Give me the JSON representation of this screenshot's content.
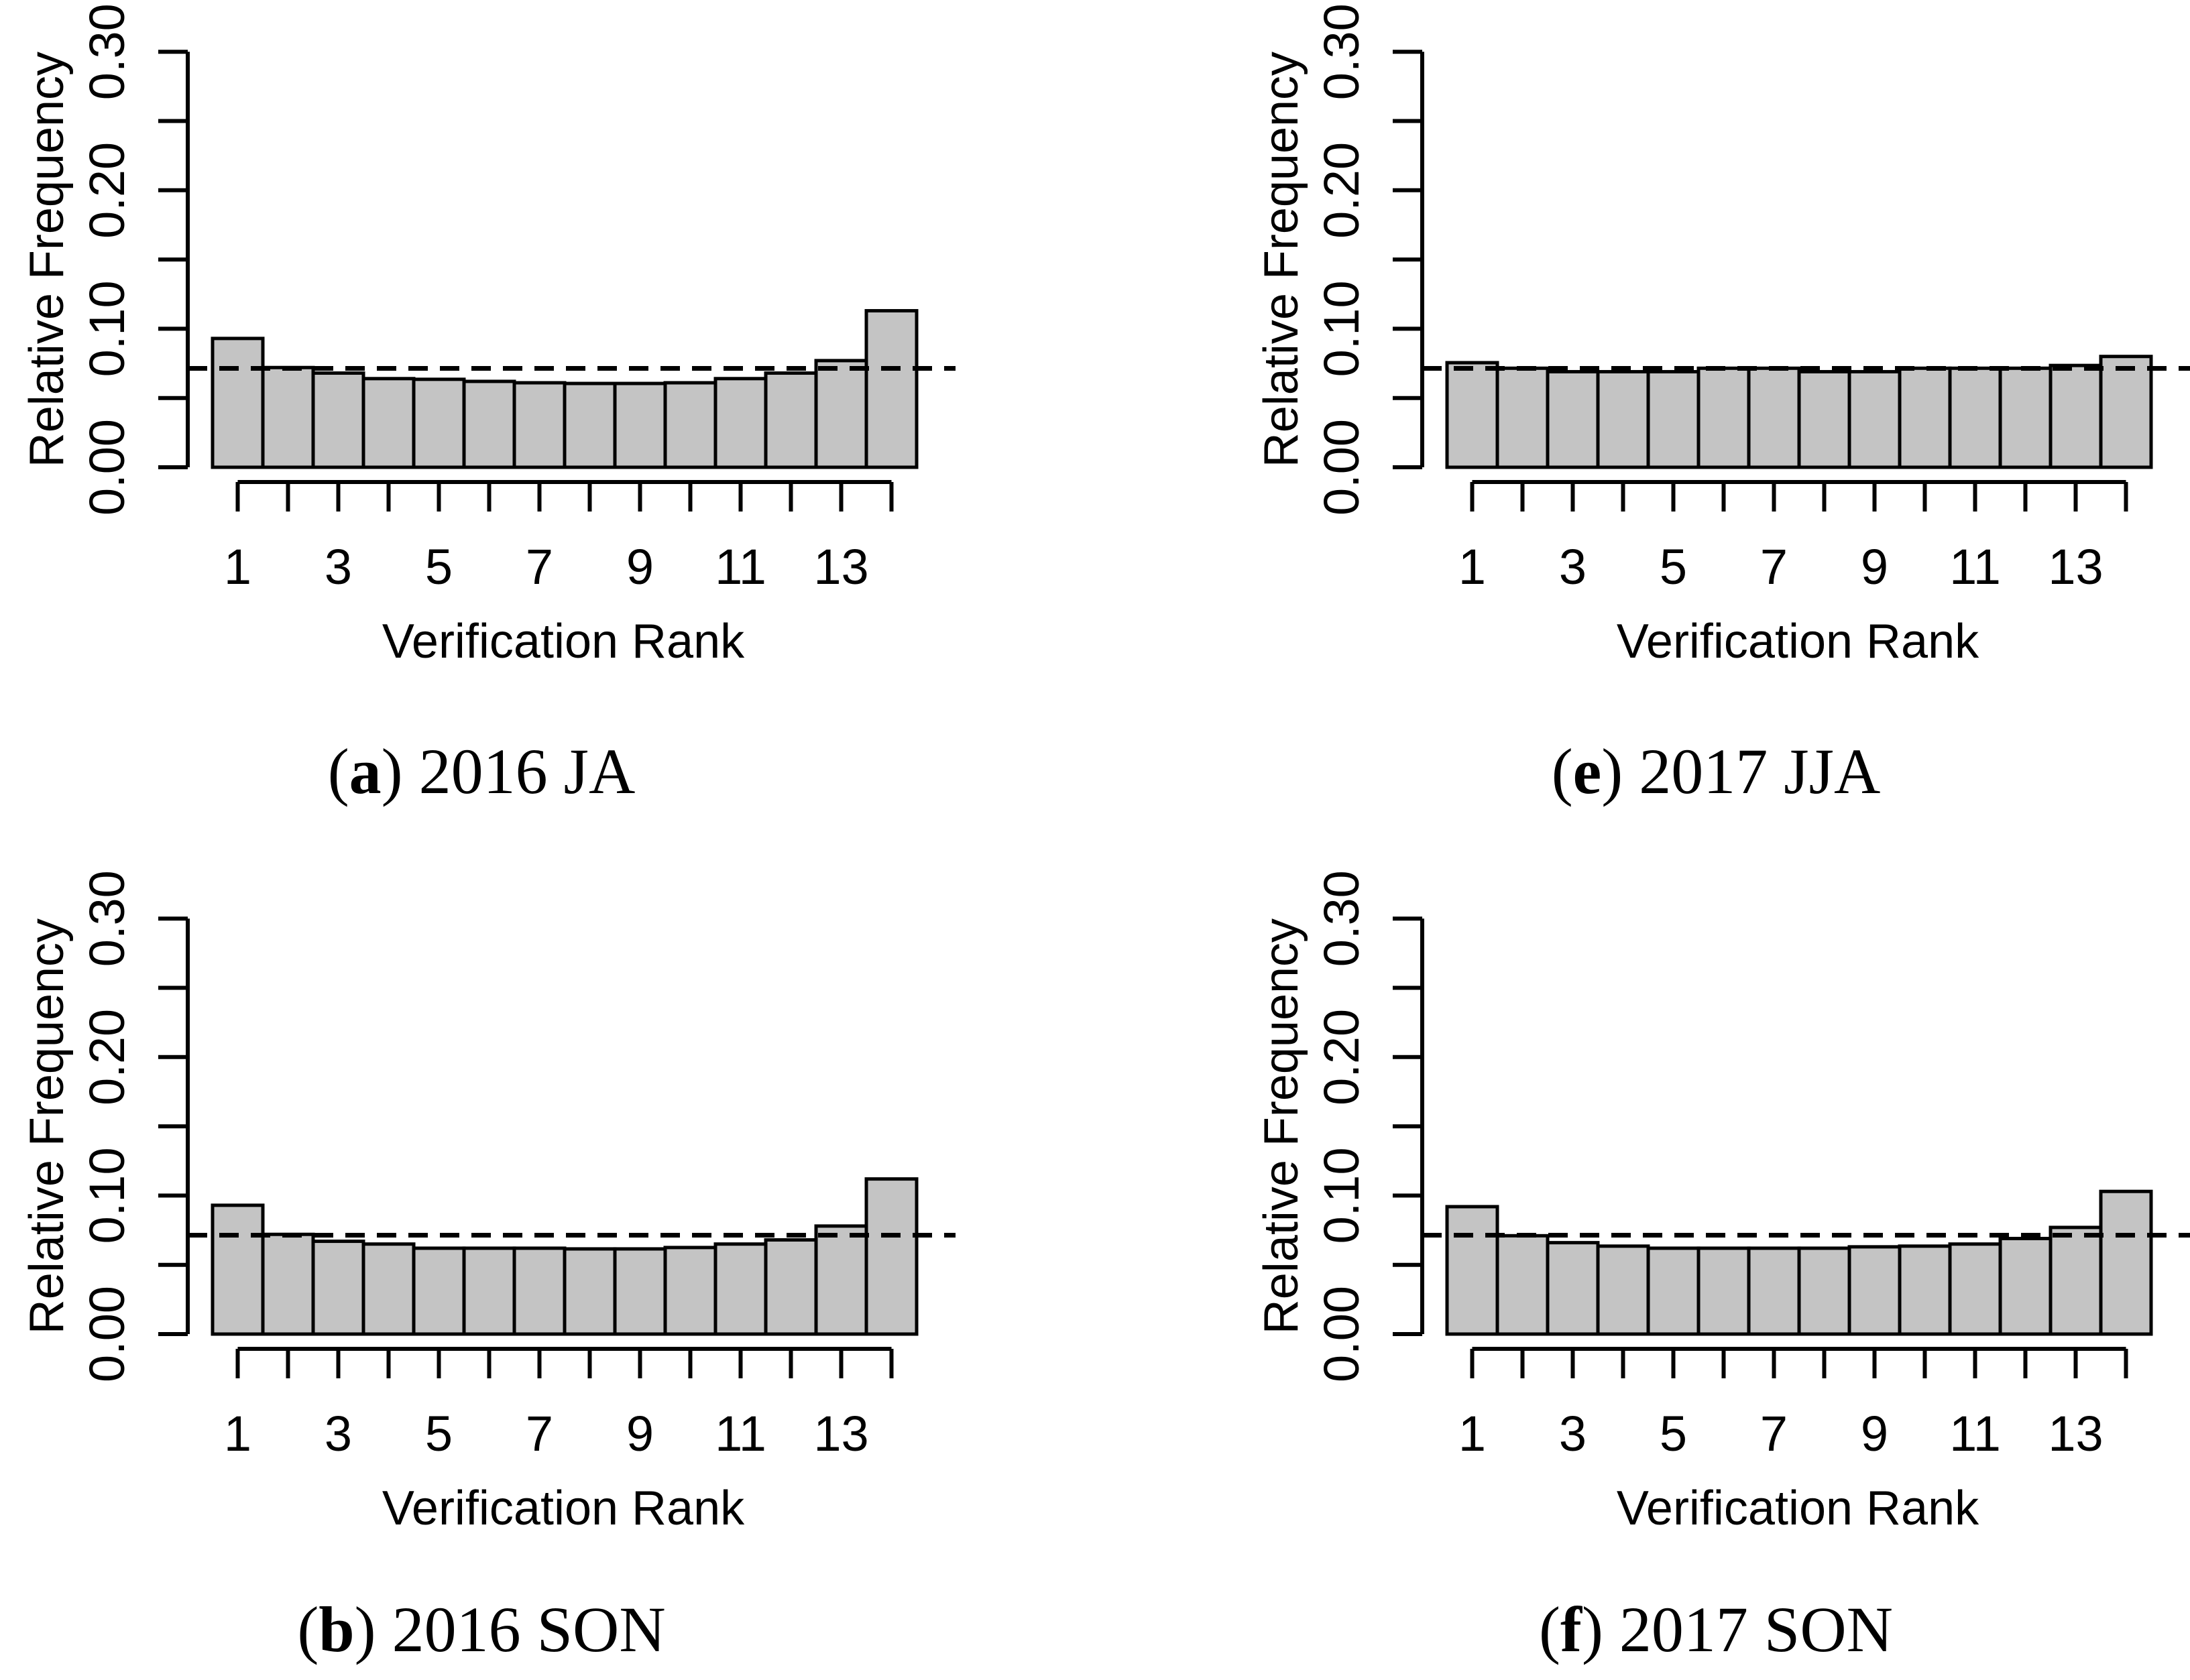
{
  "figure": {
    "ylabel": "Relative Frequency",
    "xlabel": "Verification Rank",
    "ylim": [
      0,
      0.3
    ],
    "y_tick_step": 0.05,
    "y_tick_labels": [
      {
        "value": 0.0,
        "label": "0.00"
      },
      {
        "value": 0.1,
        "label": "0.10"
      },
      {
        "value": 0.2,
        "label": "0.20"
      },
      {
        "value": 0.3,
        "label": "0.30"
      }
    ],
    "x_tick_positions": [
      1,
      3,
      5,
      7,
      9,
      11,
      13
    ],
    "n_bars": 14,
    "reference_line_value": 0.0714,
    "reference_line_style": "dashed",
    "bar_fill_color": "#c4c4c4",
    "bar_stroke_color": "#000000",
    "grid": false,
    "legend": "none"
  },
  "chart_data": [
    {
      "type": "bar",
      "panel": "a",
      "caption_letter": "a",
      "caption_text": "2016 JA",
      "xlabel": "Verification Rank",
      "ylabel": "Relative Frequency",
      "ylim": [
        0,
        0.3
      ],
      "reference_line": 0.0714,
      "categories": [
        1,
        2,
        3,
        4,
        5,
        6,
        7,
        8,
        9,
        10,
        11,
        12,
        13,
        14
      ],
      "values": [
        0.093,
        0.072,
        0.068,
        0.064,
        0.0635,
        0.062,
        0.061,
        0.0605,
        0.0605,
        0.061,
        0.064,
        0.068,
        0.077,
        0.113
      ]
    },
    {
      "type": "bar",
      "panel": "e",
      "caption_letter": "e",
      "caption_text": "2017 JJA",
      "xlabel": "Verification Rank",
      "ylabel": "Relative Frequency",
      "ylim": [
        0,
        0.3
      ],
      "reference_line": 0.0714,
      "categories": [
        1,
        2,
        3,
        4,
        5,
        6,
        7,
        8,
        9,
        10,
        11,
        12,
        13,
        14
      ],
      "values": [
        0.0755,
        0.0715,
        0.069,
        0.069,
        0.069,
        0.0715,
        0.0715,
        0.069,
        0.069,
        0.0715,
        0.0715,
        0.0715,
        0.0735,
        0.08
      ]
    },
    {
      "type": "bar",
      "panel": "b",
      "caption_letter": "b",
      "caption_text": "2016 SON",
      "xlabel": "Verification Rank",
      "ylabel": "Relative Frequency",
      "ylim": [
        0,
        0.3
      ],
      "reference_line": 0.0714,
      "categories": [
        1,
        2,
        3,
        4,
        5,
        6,
        7,
        8,
        9,
        10,
        11,
        12,
        13,
        14
      ],
      "values": [
        0.093,
        0.072,
        0.067,
        0.065,
        0.062,
        0.062,
        0.062,
        0.0615,
        0.0615,
        0.0625,
        0.065,
        0.068,
        0.078,
        0.112
      ]
    },
    {
      "type": "bar",
      "panel": "f",
      "caption_letter": "f",
      "caption_text": "2017 SON",
      "xlabel": "Verification Rank",
      "ylabel": "Relative Frequency",
      "ylim": [
        0,
        0.3
      ],
      "reference_line": 0.0714,
      "categories": [
        1,
        2,
        3,
        4,
        5,
        6,
        7,
        8,
        9,
        10,
        11,
        12,
        13,
        14
      ],
      "values": [
        0.092,
        0.071,
        0.066,
        0.0635,
        0.062,
        0.062,
        0.062,
        0.062,
        0.063,
        0.0635,
        0.065,
        0.069,
        0.077,
        0.103
      ]
    }
  ]
}
